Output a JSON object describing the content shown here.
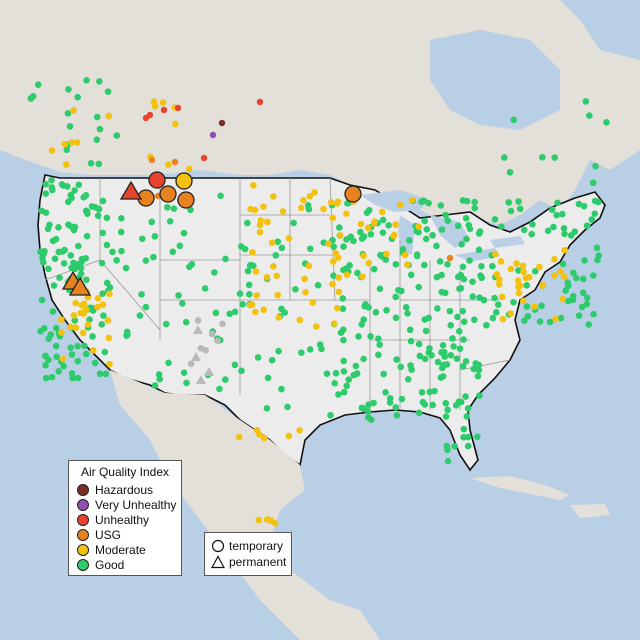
{
  "legend": {
    "title": "Air Quality Index",
    "categories": [
      {
        "label": "Hazardous",
        "color": "#7b2f22"
      },
      {
        "label": "Very Unhealthy",
        "color": "#8e4fb0"
      },
      {
        "label": "Unhealthy",
        "color": "#e8432e"
      },
      {
        "label": "USG",
        "color": "#e8821e"
      },
      {
        "label": "Moderate",
        "color": "#f3c10f"
      },
      {
        "label": "Good",
        "color": "#2ecb6d"
      }
    ],
    "shapes": [
      {
        "label": "temporary",
        "shape": "circle"
      },
      {
        "label": "permanent",
        "shape": "triangle"
      }
    ]
  },
  "colors": {
    "ocean": "#b9cfe6",
    "land_us": "#ececec",
    "land_other": "#e0ddd6",
    "boundary": "#111111",
    "state_line": "#9a9a9a",
    "no_data": "#b9b9b9"
  }
}
